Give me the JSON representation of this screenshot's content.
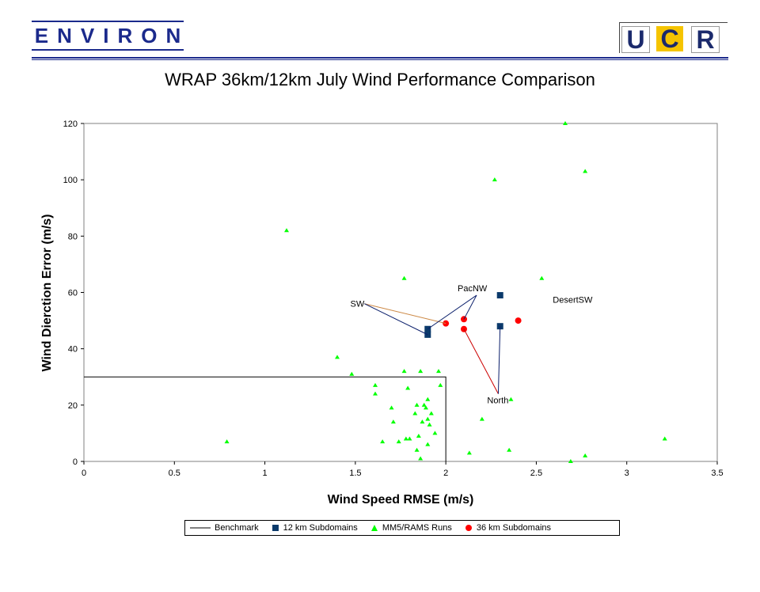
{
  "header": {
    "environ_text": "ENVIRON",
    "ucr_letters": [
      "U",
      "C",
      "R"
    ]
  },
  "colors": {
    "brand_blue": "#1b2a8c",
    "mm5": "#00ff00",
    "sub12": "#0b3a6b",
    "sub36": "#ff0000",
    "ucr_gold": "#f5c400",
    "callout_brown": "#cc8844",
    "callout_red": "#cc0000",
    "callout_navy": "#0b1f6b"
  },
  "chart_data": {
    "type": "scatter",
    "title": "WRAP 36km/12km July Wind Performance Comparison",
    "xlabel": "Wind Speed RMSE (m/s)",
    "ylabel": "Wind Dierction Error (m/s)",
    "xlim": [
      0,
      3.5
    ],
    "ylim": [
      0,
      120
    ],
    "xticks": [
      "0",
      "0.5",
      "1",
      "1.5",
      "2",
      "2.5",
      "3",
      "3.5"
    ],
    "yticks": [
      "0",
      "20",
      "40",
      "60",
      "80",
      "100",
      "120"
    ],
    "grid": false,
    "legend_position": "bottom",
    "series": [
      {
        "name": "Benchmark",
        "kind": "line",
        "points": [
          [
            0,
            30
          ],
          [
            2,
            30
          ],
          [
            2,
            0
          ]
        ]
      },
      {
        "name": "12 km Subdomains",
        "kind": "square",
        "points": [
          [
            1.9,
            45
          ],
          [
            1.9,
            47
          ],
          [
            2.3,
            59
          ],
          [
            2.3,
            48
          ]
        ]
      },
      {
        "name": "MM5/RAMS Runs",
        "kind": "triangle",
        "points": [
          [
            2.66,
            120
          ],
          [
            2.77,
            103
          ],
          [
            2.27,
            100
          ],
          [
            1.12,
            82
          ],
          [
            1.77,
            65
          ],
          [
            2.53,
            65
          ],
          [
            1.4,
            37
          ],
          [
            1.48,
            31
          ],
          [
            1.77,
            32
          ],
          [
            1.86,
            32
          ],
          [
            1.96,
            32
          ],
          [
            1.61,
            27
          ],
          [
            1.79,
            26
          ],
          [
            1.97,
            27
          ],
          [
            1.61,
            24
          ],
          [
            2.36,
            22
          ],
          [
            1.9,
            22
          ],
          [
            1.7,
            19
          ],
          [
            1.84,
            20
          ],
          [
            1.88,
            20
          ],
          [
            1.89,
            19
          ],
          [
            1.83,
            17
          ],
          [
            1.92,
            17
          ],
          [
            1.87,
            14
          ],
          [
            1.71,
            14
          ],
          [
            1.91,
            13
          ],
          [
            2.2,
            15
          ],
          [
            1.9,
            15
          ],
          [
            1.94,
            10
          ],
          [
            1.85,
            9
          ],
          [
            1.78,
            8
          ],
          [
            1.8,
            8
          ],
          [
            1.74,
            7
          ],
          [
            1.65,
            7
          ],
          [
            0.79,
            7
          ],
          [
            1.9,
            6
          ],
          [
            1.84,
            4
          ],
          [
            2.13,
            3
          ],
          [
            2.35,
            4
          ],
          [
            1.86,
            1
          ],
          [
            2.69,
            0
          ],
          [
            2.77,
            2
          ],
          [
            3.21,
            8
          ]
        ]
      },
      {
        "name": "36 km Subdomains",
        "kind": "circle",
        "points": [
          [
            2.0,
            49
          ],
          [
            2.1,
            50.5
          ],
          [
            2.1,
            47
          ],
          [
            2.4,
            50
          ]
        ]
      }
    ],
    "annotations": [
      {
        "label": "SW",
        "x": 1.55,
        "y": 56
      },
      {
        "label": "PacNW",
        "x": 2.17,
        "y": 59
      },
      {
        "label": "DesertSW",
        "x": 2.6,
        "y": 56
      },
      {
        "label": "North",
        "x": 2.29,
        "y": 24
      }
    ]
  },
  "legend": {
    "benchmark": "Benchmark",
    "sub12": "12 km Subdomains",
    "mm5": "MM5/RAMS Runs",
    "sub36": "36 km Subdomains"
  }
}
